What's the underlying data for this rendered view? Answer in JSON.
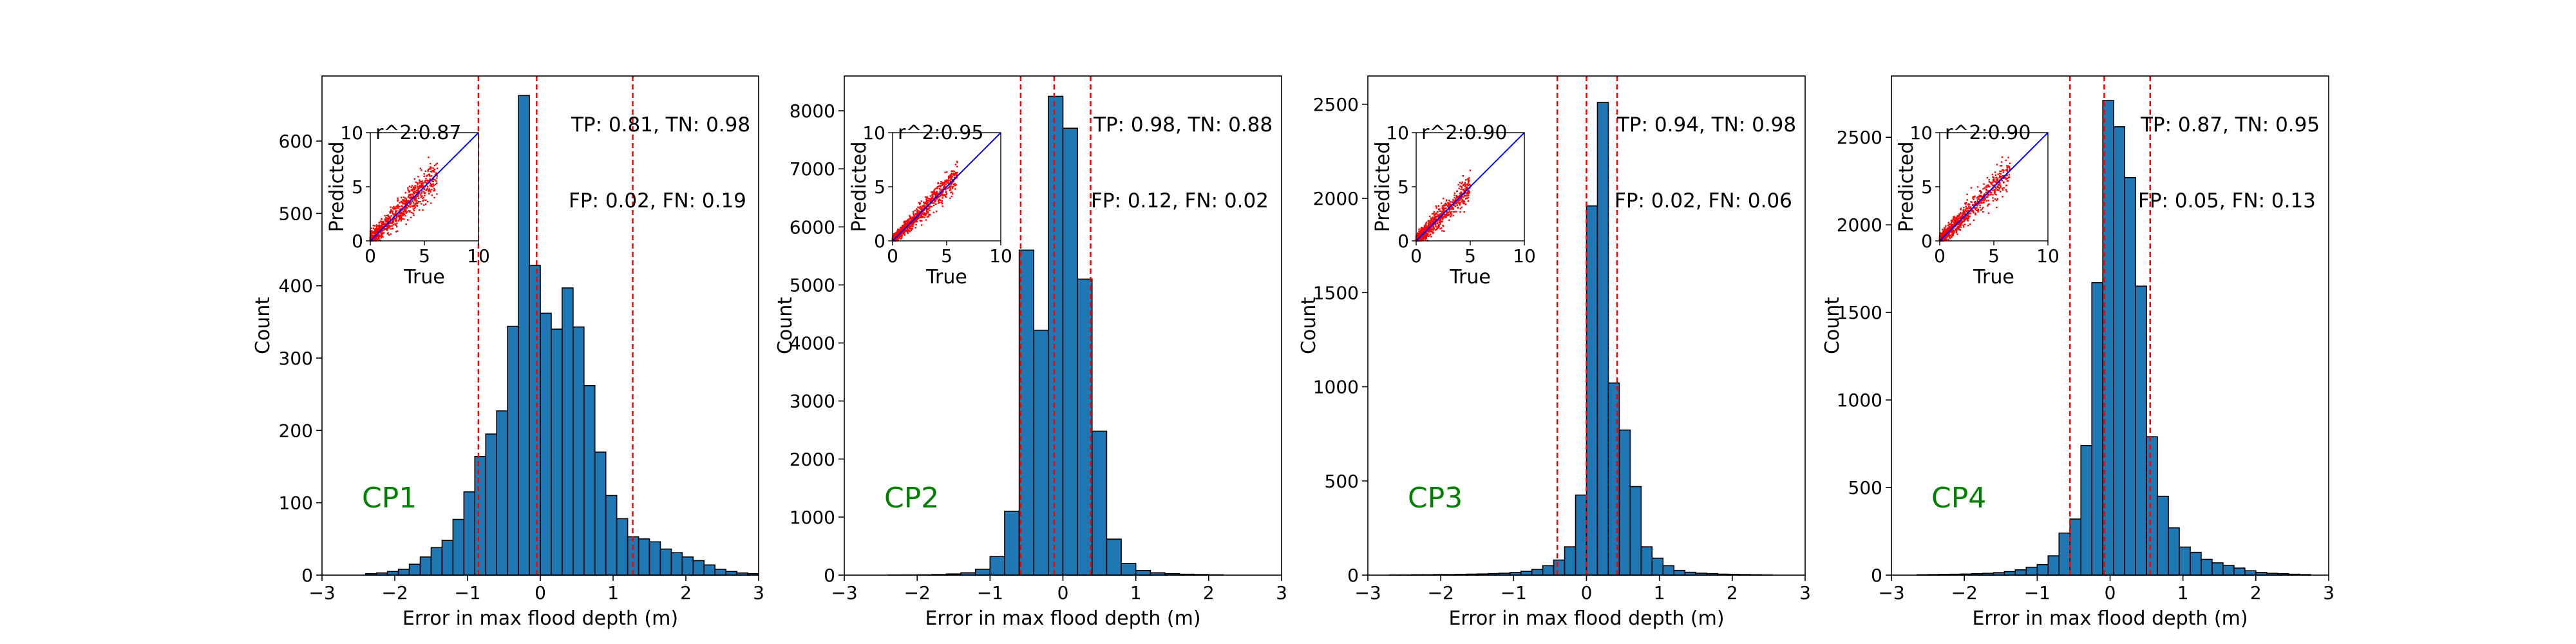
{
  "figure": {
    "background": "#ffffff",
    "bar_color": "#1f77b4",
    "bar_edge_color": "#000000",
    "threshold_line_color": "#ff0000",
    "scatter_color": "#ff0000",
    "identity_line_color": "#0000ff",
    "panel_label_color": "#008000"
  },
  "chart_data": [
    {
      "type": "bar",
      "panel_label": "CP1",
      "xlabel": "Error in max flood depth (m)",
      "ylabel": "Count",
      "xlim": [
        -3,
        3
      ],
      "ylim": [
        0,
        690
      ],
      "xticks": [
        -3,
        -2,
        -1,
        0,
        1,
        2,
        3
      ],
      "yticks": [
        0,
        100,
        200,
        300,
        400,
        500,
        600
      ],
      "bin_edges": [
        -2.55,
        -2.4,
        -2.25,
        -2.1,
        -1.95,
        -1.8,
        -1.65,
        -1.5,
        -1.35,
        -1.2,
        -1.05,
        -0.9,
        -0.75,
        -0.6,
        -0.45,
        -0.3,
        -0.15,
        0.0,
        0.15,
        0.3,
        0.45,
        0.6,
        0.75,
        0.9,
        1.05,
        1.2,
        1.35,
        1.5,
        1.65,
        1.8,
        1.95,
        2.1,
        2.25,
        2.4,
        2.55,
        2.7,
        2.85,
        3.0
      ],
      "counts": [
        0,
        2,
        3,
        5,
        8,
        15,
        25,
        38,
        48,
        77,
        115,
        164,
        195,
        227,
        344,
        663,
        428,
        362,
        340,
        397,
        343,
        262,
        170,
        110,
        78,
        53,
        50,
        46,
        36,
        31,
        25,
        20,
        14,
        8,
        5,
        3,
        2
      ],
      "threshold_lines": [
        -0.85,
        -0.05,
        1.27
      ],
      "annotation_tp_tn": "TP: 0.81, TN: 0.98",
      "annotation_fp_fn": "FP: 0.02, FN: 0.19",
      "inset": {
        "title": "r^2:0.87",
        "xlabel": "True",
        "ylabel": "Predicted",
        "xlim": [
          0,
          10
        ],
        "ylim": [
          0,
          10
        ],
        "xticks": [
          0,
          5,
          10
        ],
        "yticks": [
          0,
          5,
          10
        ],
        "scatter_max": 6.2,
        "scatter_spread": 0.55
      }
    },
    {
      "type": "bar",
      "panel_label": "CP2",
      "xlabel": "Error in max flood depth (m)",
      "ylabel": "Count",
      "xlim": [
        -3,
        3
      ],
      "ylim": [
        0,
        8600
      ],
      "xticks": [
        -3,
        -2,
        -1,
        0,
        1,
        2,
        3
      ],
      "yticks": [
        0,
        1000,
        2000,
        3000,
        4000,
        5000,
        6000,
        7000,
        8000
      ],
      "bin_edges": [
        -2.4,
        -2.2,
        -2.0,
        -1.8,
        -1.6,
        -1.4,
        -1.2,
        -1.0,
        -0.8,
        -0.6,
        -0.4,
        -0.2,
        0.0,
        0.2,
        0.4,
        0.6,
        0.8,
        1.0,
        1.2,
        1.4,
        1.6,
        1.8,
        2.0,
        2.2
      ],
      "counts": [
        2,
        3,
        5,
        10,
        20,
        40,
        100,
        320,
        1100,
        5600,
        4220,
        8250,
        7700,
        5100,
        2480,
        620,
        200,
        80,
        40,
        25,
        15,
        10,
        5
      ],
      "threshold_lines": [
        -0.58,
        -0.12,
        0.38
      ],
      "annotation_tp_tn": "TP: 0.98, TN: 0.88",
      "annotation_fp_fn": "FP: 0.12, FN: 0.02",
      "inset": {
        "title": "r^2:0.95",
        "xlabel": "True",
        "ylabel": "Predicted",
        "xlim": [
          0,
          10
        ],
        "ylim": [
          0,
          10
        ],
        "xticks": [
          0,
          5,
          10
        ],
        "yticks": [
          0,
          5,
          10
        ],
        "scatter_max": 6.0,
        "scatter_spread": 0.4
      }
    },
    {
      "type": "bar",
      "panel_label": "CP3",
      "xlabel": "Error in max flood depth (m)",
      "ylabel": "Count",
      "xlim": [
        -3,
        3
      ],
      "ylim": [
        0,
        2650
      ],
      "xticks": [
        -3,
        -2,
        -1,
        0,
        1,
        2,
        3
      ],
      "yticks": [
        0,
        500,
        1000,
        1500,
        2000,
        2500
      ],
      "bin_edges": [
        -2.7,
        -2.55,
        -2.4,
        -2.25,
        -2.1,
        -1.95,
        -1.8,
        -1.65,
        -1.5,
        -1.35,
        -1.2,
        -1.05,
        -0.9,
        -0.75,
        -0.6,
        -0.45,
        -0.3,
        -0.15,
        0.0,
        0.15,
        0.3,
        0.45,
        0.6,
        0.75,
        0.9,
        1.05,
        1.2,
        1.35,
        1.5,
        1.65,
        1.8,
        1.95,
        2.1,
        2.25,
        2.4,
        2.55
      ],
      "counts": [
        1,
        1,
        2,
        2,
        3,
        3,
        4,
        5,
        6,
        8,
        10,
        14,
        20,
        30,
        50,
        80,
        150,
        425,
        1960,
        2510,
        1020,
        770,
        470,
        150,
        90,
        50,
        25,
        15,
        10,
        8,
        5,
        4,
        3,
        2,
        1
      ],
      "threshold_lines": [
        -0.4,
        0.0,
        0.42
      ],
      "annotation_tp_tn": "TP: 0.94, TN: 0.98",
      "annotation_fp_fn": "FP: 0.02, FN: 0.06",
      "inset": {
        "title": "r^2:0.90",
        "xlabel": "True",
        "ylabel": "Predicted",
        "xlim": [
          0,
          10
        ],
        "ylim": [
          0,
          10
        ],
        "xticks": [
          0,
          5,
          10
        ],
        "yticks": [
          0,
          5,
          10
        ],
        "scatter_max": 5.0,
        "scatter_spread": 0.45
      }
    },
    {
      "type": "bar",
      "panel_label": "CP4",
      "xlabel": "Error in max flood depth (m)",
      "ylabel": "Count",
      "xlim": [
        -3,
        3
      ],
      "ylim": [
        0,
        2850
      ],
      "xticks": [
        -3,
        -2,
        -1,
        0,
        1,
        2,
        3
      ],
      "yticks": [
        0,
        500,
        1000,
        1500,
        2000,
        2500
      ],
      "bin_edges": [
        -2.65,
        -2.5,
        -2.35,
        -2.2,
        -2.05,
        -1.9,
        -1.75,
        -1.6,
        -1.45,
        -1.3,
        -1.15,
        -1.0,
        -0.85,
        -0.7,
        -0.55,
        -0.4,
        -0.25,
        -0.1,
        0.05,
        0.2,
        0.35,
        0.5,
        0.65,
        0.8,
        0.95,
        1.1,
        1.25,
        1.4,
        1.55,
        1.7,
        1.85,
        2.0,
        2.15,
        2.3,
        2.45,
        2.6,
        2.75
      ],
      "counts": [
        2,
        3,
        4,
        5,
        6,
        8,
        10,
        14,
        20,
        30,
        45,
        60,
        110,
        240,
        320,
        740,
        1670,
        2710,
        2560,
        2270,
        1650,
        790,
        450,
        270,
        160,
        130,
        90,
        70,
        55,
        40,
        25,
        15,
        10,
        8,
        5,
        3
      ],
      "threshold_lines": [
        -0.55,
        -0.08,
        0.55
      ],
      "annotation_tp_tn": "TP: 0.87, TN: 0.95",
      "annotation_fp_fn": "FP: 0.05, FN: 0.13",
      "inset": {
        "title": "r^2:0.90",
        "xlabel": "True",
        "ylabel": "Predicted",
        "xlim": [
          0,
          10
        ],
        "ylim": [
          0,
          10
        ],
        "xticks": [
          0,
          5,
          10
        ],
        "yticks": [
          0,
          5,
          10
        ],
        "scatter_max": 6.5,
        "scatter_spread": 0.5
      }
    }
  ]
}
